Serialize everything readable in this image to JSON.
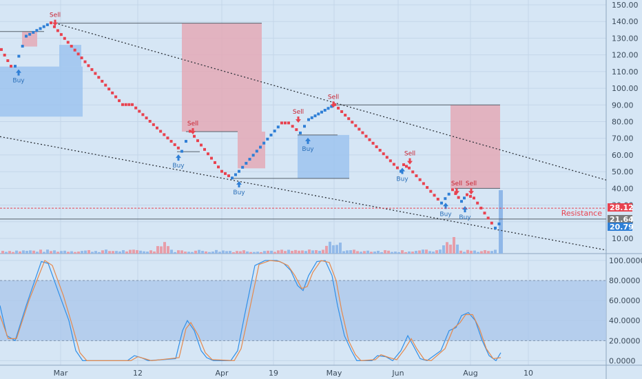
{
  "colors": {
    "background": "#d6e6f5",
    "bull_brick": "#2f7fd6",
    "bear_brick": "#e8424f",
    "buy_zone": "#9ec3ee",
    "sell_zone": "#e4a9b6",
    "resistance": "#e8424f",
    "stoch_k": "#2f8fe8",
    "stoch_d": "#e5894c",
    "stoch_band": "#a9c6ea"
  },
  "chart_data": [
    {
      "type": "renko",
      "price_axis": {
        "ticks": [
          "150.00",
          "140.00",
          "130.00",
          "120.00",
          "110.00",
          "100.00",
          "90.00",
          "80.00",
          "70.00",
          "60.00",
          "50.00",
          "40.00",
          "30.00",
          "20.00",
          "10.00"
        ],
        "ylim": [
          0,
          155
        ]
      },
      "x_axis": {
        "ticks": [
          "Mar",
          "12",
          "Apr",
          "19",
          "May",
          "Jun",
          "Aug",
          "10"
        ]
      },
      "price_labels": [
        {
          "value": 28.12,
          "text": "28.12",
          "color": "#e8424f"
        },
        {
          "value": 21.64,
          "text": "21.64",
          "color": "#7a7a7a"
        },
        {
          "value": 20.79,
          "text": "20.79",
          "color": "#2f7fd6"
        }
      ],
      "resistance": {
        "label": "Resistance",
        "value": 28.12
      },
      "renko_path": [
        [
          0,
          123
        ],
        [
          14,
          113
        ],
        [
          20,
          113
        ],
        [
          36,
          131
        ],
        [
          72,
          139
        ],
        [
          176,
          90
        ],
        [
          190,
          90
        ],
        [
          262,
          62
        ],
        [
          274,
          74
        ],
        [
          280,
          71
        ],
        [
          320,
          50
        ],
        [
          335,
          46
        ],
        [
          345,
          50
        ],
        [
          407,
          79
        ],
        [
          417,
          79
        ],
        [
          434,
          73
        ],
        [
          446,
          81
        ],
        [
          484,
          90
        ],
        [
          580,
          50
        ],
        [
          584,
          54
        ],
        [
          592,
          52
        ],
        [
          639,
          31
        ],
        [
          655,
          39
        ],
        [
          668,
          32
        ],
        [
          676,
          36
        ],
        [
          686,
          34
        ],
        [
          717,
          16
        ],
        [
          728,
          21
        ]
      ],
      "zones": [
        {
          "kind": "buy",
          "x0": 0,
          "x1": 120,
          "y_top": 113,
          "y_bottom": 83
        },
        {
          "kind": "buy",
          "x0": 86,
          "x1": 118,
          "y_top": 126,
          "y_bottom": 113
        },
        {
          "kind": "sell",
          "x0": 32,
          "x1": 54,
          "y_top": 134,
          "y_bottom": 125
        },
        {
          "kind": "sell",
          "x0": 264,
          "x1": 380,
          "y_top": 139,
          "y_bottom": 74
        },
        {
          "kind": "sell",
          "x0": 345,
          "x1": 385,
          "y_top": 74,
          "y_bottom": 52
        },
        {
          "kind": "buy",
          "x0": 432,
          "x1": 507,
          "y_top": 72,
          "y_bottom": 46
        },
        {
          "kind": "sell",
          "x0": 654,
          "x1": 726,
          "y_top": 90,
          "y_bottom": 40
        }
      ],
      "horizontal_lines": [
        {
          "y": 134,
          "x0": 0,
          "x1": 64
        },
        {
          "y": 139,
          "x0": 80,
          "x1": 380
        },
        {
          "y": 74,
          "x0": 270,
          "x1": 345
        },
        {
          "y": 62,
          "x0": 257,
          "x1": 290
        },
        {
          "y": 46,
          "x0": 335,
          "x1": 507
        },
        {
          "y": 72,
          "x0": 432,
          "x1": 490
        },
        {
          "y": 90,
          "x0": 484,
          "x1": 726
        },
        {
          "y": 40,
          "x0": 660,
          "x1": 726
        },
        {
          "y": 21.64,
          "x0": 0,
          "x1": 880
        }
      ],
      "trendlines": [
        {
          "x0": 80,
          "y0": 139,
          "x1": 880,
          "y1": 45
        },
        {
          "x0": 0,
          "y0": 71,
          "x1": 880,
          "y1": 3
        }
      ],
      "signals": [
        {
          "label": "Buy",
          "kind": "buy",
          "x": 27,
          "y": 113
        },
        {
          "label": "Sell",
          "kind": "sell",
          "x": 80,
          "y": 139
        },
        {
          "label": "Sell",
          "kind": "sell",
          "x": 280,
          "y": 74
        },
        {
          "label": "Buy",
          "kind": "buy",
          "x": 259,
          "y": 62
        },
        {
          "label": "Buy",
          "kind": "buy",
          "x": 347,
          "y": 46
        },
        {
          "label": "Sell",
          "kind": "sell",
          "x": 433,
          "y": 81
        },
        {
          "label": "Buy",
          "kind": "buy",
          "x": 447,
          "y": 72
        },
        {
          "label": "Sell",
          "kind": "sell",
          "x": 484,
          "y": 90
        },
        {
          "label": "Sell",
          "kind": "sell",
          "x": 595,
          "y": 56
        },
        {
          "label": "Buy",
          "kind": "buy",
          "x": 584,
          "y": 54
        },
        {
          "label": "Sell",
          "kind": "sell",
          "x": 663,
          "y": 38
        },
        {
          "label": "Sell",
          "kind": "sell",
          "x": 684,
          "y": 38
        },
        {
          "label": "Buy",
          "kind": "buy",
          "x": 647,
          "y": 33
        },
        {
          "label": "Buy",
          "kind": "buy",
          "x": 675,
          "y": 31
        }
      ]
    },
    {
      "type": "line",
      "name": "stochastic",
      "y_axis": {
        "ticks": [
          "100.0000",
          "80.0000",
          "60.0000",
          "40.0000",
          "20.0000",
          "0.0000"
        ],
        "ylim": [
          -5,
          105
        ]
      },
      "band": [
        20,
        80
      ],
      "series": [
        {
          "key": "k",
          "points": [
            [
              0,
              55
            ],
            [
              10,
              25
            ],
            [
              22,
              20
            ],
            [
              38,
              55
            ],
            [
              60,
              99
            ],
            [
              70,
              97
            ],
            [
              84,
              70
            ],
            [
              100,
              40
            ],
            [
              110,
              10
            ],
            [
              120,
              0
            ],
            [
              185,
              0
            ],
            [
              195,
              5
            ],
            [
              205,
              3
            ],
            [
              215,
              0
            ],
            [
              255,
              2
            ],
            [
              265,
              30
            ],
            [
              272,
              40
            ],
            [
              282,
              30
            ],
            [
              292,
              10
            ],
            [
              300,
              3
            ],
            [
              310,
              0
            ],
            [
              335,
              0
            ],
            [
              345,
              10
            ],
            [
              355,
              45
            ],
            [
              370,
              95
            ],
            [
              385,
              100
            ],
            [
              402,
              100
            ],
            [
              412,
              97
            ],
            [
              422,
              90
            ],
            [
              432,
              75
            ],
            [
              440,
              70
            ],
            [
              448,
              85
            ],
            [
              460,
              99
            ],
            [
              472,
              100
            ],
            [
              482,
              85
            ],
            [
              490,
              55
            ],
            [
              500,
              25
            ],
            [
              510,
              10
            ],
            [
              518,
              0
            ],
            [
              540,
              0
            ],
            [
              548,
              5
            ],
            [
              560,
              4
            ],
            [
              570,
              0
            ],
            [
              582,
              10
            ],
            [
              592,
              25
            ],
            [
              600,
              15
            ],
            [
              610,
              2
            ],
            [
              620,
              0
            ],
            [
              640,
              10
            ],
            [
              652,
              30
            ],
            [
              662,
              33
            ],
            [
              670,
              45
            ],
            [
              680,
              48
            ],
            [
              690,
              40
            ],
            [
              700,
              20
            ],
            [
              710,
              5
            ],
            [
              720,
              0
            ],
            [
              727,
              8
            ]
          ]
        },
        {
          "key": "d",
          "points": [
            [
              0,
              45
            ],
            [
              12,
              22
            ],
            [
              24,
              22
            ],
            [
              42,
              60
            ],
            [
              65,
              100
            ],
            [
              76,
              95
            ],
            [
              92,
              65
            ],
            [
              105,
              35
            ],
            [
              116,
              8
            ],
            [
              126,
              0
            ],
            [
              190,
              0
            ],
            [
              200,
              4
            ],
            [
              210,
              2
            ],
            [
              220,
              0
            ],
            [
              260,
              3
            ],
            [
              270,
              32
            ],
            [
              277,
              38
            ],
            [
              288,
              25
            ],
            [
              298,
              8
            ],
            [
              308,
              1
            ],
            [
              340,
              0
            ],
            [
              350,
              12
            ],
            [
              362,
              50
            ],
            [
              376,
              96
            ],
            [
              392,
              100
            ],
            [
              406,
              99
            ],
            [
              418,
              95
            ],
            [
              428,
              85
            ],
            [
              438,
              72
            ],
            [
              446,
              74
            ],
            [
              454,
              88
            ],
            [
              466,
              100
            ],
            [
              478,
              98
            ],
            [
              488,
              80
            ],
            [
              496,
              50
            ],
            [
              506,
              20
            ],
            [
              516,
              6
            ],
            [
              524,
              0
            ],
            [
              545,
              1
            ],
            [
              553,
              6
            ],
            [
              565,
              3
            ],
            [
              576,
              1
            ],
            [
              588,
              12
            ],
            [
              597,
              22
            ],
            [
              605,
              12
            ],
            [
              616,
              1
            ],
            [
              626,
              0
            ],
            [
              646,
              12
            ],
            [
              658,
              32
            ],
            [
              668,
              38
            ],
            [
              676,
              46
            ],
            [
              686,
              46
            ],
            [
              696,
              32
            ],
            [
              706,
              12
            ],
            [
              716,
              2
            ],
            [
              727,
              3
            ]
          ]
        }
      ]
    }
  ]
}
